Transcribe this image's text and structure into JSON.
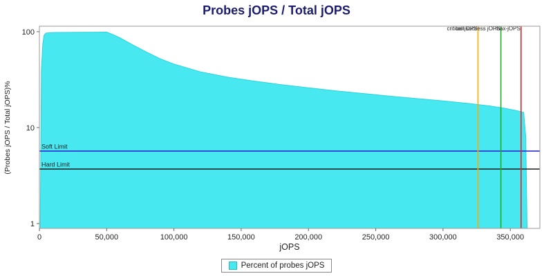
{
  "title": "Probes jOPS / Total jOPS",
  "chart_data": {
    "type": "area",
    "title": "Probes jOPS / Total jOPS",
    "xlabel": "jOPS",
    "ylabel": "(Probes jOPS / Total jOPS)%",
    "y_scale": "log",
    "xlim": [
      0,
      372000
    ],
    "ylim": [
      0.89,
      114
    ],
    "x_ticks": [
      0,
      50000,
      100000,
      150000,
      200000,
      250000,
      300000,
      350000
    ],
    "x_tick_labels": [
      "0",
      "50,000",
      "100,000",
      "150,000",
      "200,000",
      "250,000",
      "300,000",
      "350,000"
    ],
    "y_ticks": [
      100,
      10,
      1
    ],
    "y_tick_labels": [
      "100",
      "10",
      "1"
    ],
    "series": [
      {
        "name": "Percent of probes jOPS",
        "color": "#48e8f0",
        "edge_color": "#2bd4dc",
        "points": [
          [
            600,
            0.9
          ],
          [
            1500,
            40
          ],
          [
            2500,
            75
          ],
          [
            3500,
            92
          ],
          [
            5000,
            97
          ],
          [
            10000,
            98
          ],
          [
            30000,
            98.5
          ],
          [
            50000,
            99
          ],
          [
            55000,
            93
          ],
          [
            60000,
            86
          ],
          [
            70000,
            72
          ],
          [
            80000,
            61
          ],
          [
            90000,
            52
          ],
          [
            100000,
            46
          ],
          [
            120000,
            38
          ],
          [
            140000,
            33.5
          ],
          [
            160000,
            30.5
          ],
          [
            180000,
            28
          ],
          [
            200000,
            26
          ],
          [
            220000,
            24.2
          ],
          [
            240000,
            22.7
          ],
          [
            260000,
            21.3
          ],
          [
            280000,
            20.1
          ],
          [
            300000,
            19
          ],
          [
            320000,
            17.8
          ],
          [
            335000,
            16.8
          ],
          [
            345000,
            16
          ],
          [
            352000,
            15.3
          ],
          [
            357000,
            14.8
          ],
          [
            360000,
            14.4
          ],
          [
            361500,
            8
          ],
          [
            362500,
            0.9
          ]
        ]
      }
    ],
    "hlines": [
      {
        "label": "Soft Limit",
        "value": 5.7,
        "color": "#2a2ad4"
      },
      {
        "label": "Hard Limit",
        "value": 3.7,
        "color": "#1a1a1a"
      }
    ],
    "vlines": [
      {
        "label": "critical-jOPS",
        "value": 326000,
        "color": "#ffaa00"
      },
      {
        "label": "last success jOPS",
        "value": 343000,
        "color": "#1fae1f"
      },
      {
        "label": "max-jOPS",
        "value": 358000,
        "color": "#e82222"
      }
    ],
    "legend_position": "bottom"
  },
  "legend": {
    "items": [
      {
        "label": "Percent of probes jOPS",
        "color": "#48e8f0"
      }
    ]
  }
}
